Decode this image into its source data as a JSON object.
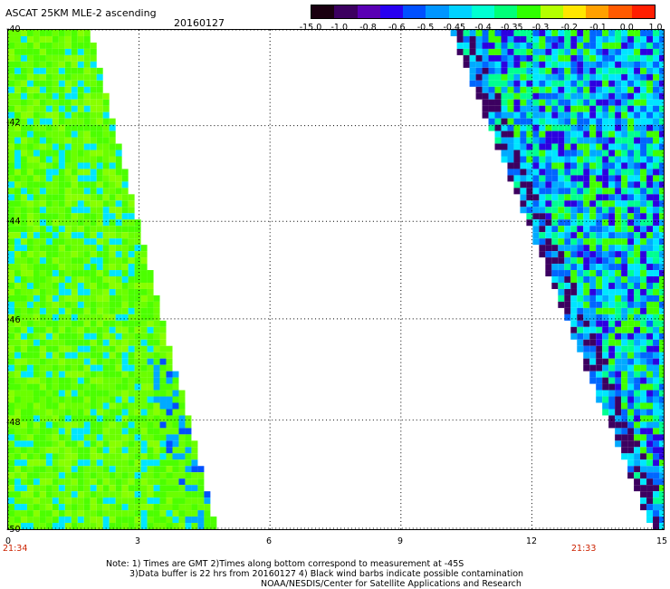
{
  "title": "ASCAT 25KM MLE-2 ascending",
  "date": "20160127",
  "colorbar": {
    "labels": [
      "-15.0",
      "-1.0",
      "-0.8",
      "-0.6",
      "-0.5",
      "-0.45",
      "-0.4",
      "-0.35",
      "-0.3",
      "-0.2",
      "-0.1",
      "0.0",
      "1.0"
    ],
    "colors": [
      "#1a0010",
      "#3c0060",
      "#5a00b4",
      "#2800f0",
      "#0050ff",
      "#0096ff",
      "#00d2ff",
      "#00ffd2",
      "#00ff78",
      "#30ff00",
      "#b4ff00",
      "#ffe600",
      "#ffa000",
      "#ff5a00",
      "#ff1e00"
    ]
  },
  "y_axis": {
    "labels": [
      "-40",
      "-42",
      "-44",
      "-46",
      "-48",
      "-50"
    ],
    "range": [
      -40,
      -50
    ]
  },
  "x_axis": {
    "labels": [
      "0",
      "3",
      "6",
      "9",
      "12",
      "15"
    ],
    "range": [
      0,
      15
    ]
  },
  "times": {
    "left": "21:34",
    "right": "21:33"
  },
  "note": {
    "line1": "Note: 1) Times are GMT 2)Times along bottom correspond to measurement at -45S",
    "line2": "3)Data buffer is 22 hrs from 20160127 4) Black wind barbs indicate possible contamination",
    "line3": "NOAA/NESDIS/Center for Satellite Applications and Research"
  }
}
